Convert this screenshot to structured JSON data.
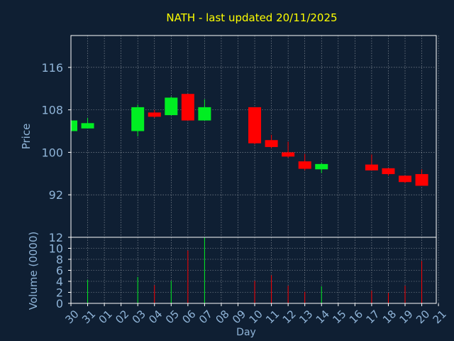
{
  "chart_data": {
    "type": "candlestick",
    "title": "NATH - last updated 20/11/2025",
    "xlabel": "Day",
    "price_panel": {
      "ylabel": "Price",
      "ylim": [
        84,
        122
      ],
      "yticks": [
        92,
        100,
        108,
        116
      ],
      "grid": true
    },
    "volume_panel": {
      "ylabel": "Volume (0000)",
      "ylim": [
        0,
        12
      ],
      "yticks": [
        0,
        2,
        4,
        6,
        8,
        10,
        12
      ],
      "grid": true
    },
    "x_ticks": [
      "30",
      "31",
      "01",
      "02",
      "03",
      "04",
      "05",
      "06",
      "07",
      "08",
      "09",
      "10",
      "11",
      "12",
      "13",
      "14",
      "15",
      "16",
      "17",
      "18",
      "19",
      "20",
      "21"
    ],
    "candles": [
      {
        "day": "30",
        "open": 104.0,
        "high": 106.0,
        "low": 104.0,
        "close": 106.0,
        "volume": 0
      },
      {
        "day": "31",
        "open": 104.5,
        "high": 106.5,
        "low": 104.5,
        "close": 105.5,
        "volume": 4.3
      },
      {
        "day": "03",
        "open": 104.0,
        "high": 109.0,
        "low": 103.0,
        "close": 108.5,
        "volume": 4.8
      },
      {
        "day": "04",
        "open": 107.5,
        "high": 108.0,
        "low": 106.5,
        "close": 106.7,
        "volume": 3.3
      },
      {
        "day": "05",
        "open": 107.0,
        "high": 110.5,
        "low": 107.0,
        "close": 110.3,
        "volume": 4.1
      },
      {
        "day": "06",
        "open": 111.0,
        "high": 111.0,
        "low": 106.0,
        "close": 106.0,
        "volume": 9.6
      },
      {
        "day": "07",
        "open": 106.0,
        "high": 110.0,
        "low": 106.0,
        "close": 108.5,
        "volume": 12.0
      },
      {
        "day": "10",
        "open": 108.5,
        "high": 108.5,
        "low": 101.5,
        "close": 101.7,
        "volume": 4.1
      },
      {
        "day": "11",
        "open": 102.3,
        "high": 103.3,
        "low": 100.8,
        "close": 101.0,
        "volume": 5.1
      },
      {
        "day": "12",
        "open": 100.0,
        "high": 102.0,
        "low": 99.0,
        "close": 99.2,
        "volume": 3.2
      },
      {
        "day": "13",
        "open": 98.3,
        "high": 99.7,
        "low": 96.6,
        "close": 96.9,
        "volume": 2.1
      },
      {
        "day": "14",
        "open": 96.8,
        "high": 98.0,
        "low": 96.1,
        "close": 97.8,
        "volume": 3.1
      },
      {
        "day": "17",
        "open": 97.7,
        "high": 99.6,
        "low": 96.6,
        "close": 96.6,
        "volume": 2.3
      },
      {
        "day": "18",
        "open": 97.0,
        "high": 97.0,
        "low": 95.6,
        "close": 95.9,
        "volume": 1.9
      },
      {
        "day": "19",
        "open": 95.6,
        "high": 95.6,
        "low": 94.2,
        "close": 94.4,
        "volume": 3.2
      },
      {
        "day": "20",
        "open": 95.9,
        "high": 96.8,
        "low": 93.7,
        "close": 93.7,
        "volume": 7.7
      }
    ],
    "colors": {
      "background": "#0f1f33",
      "up": "#00ee22",
      "down": "#ff0000",
      "title": "#ffff00",
      "axis_text": "#8fb4d8",
      "frame": "#ffffff",
      "grid": "#ffffff"
    }
  }
}
